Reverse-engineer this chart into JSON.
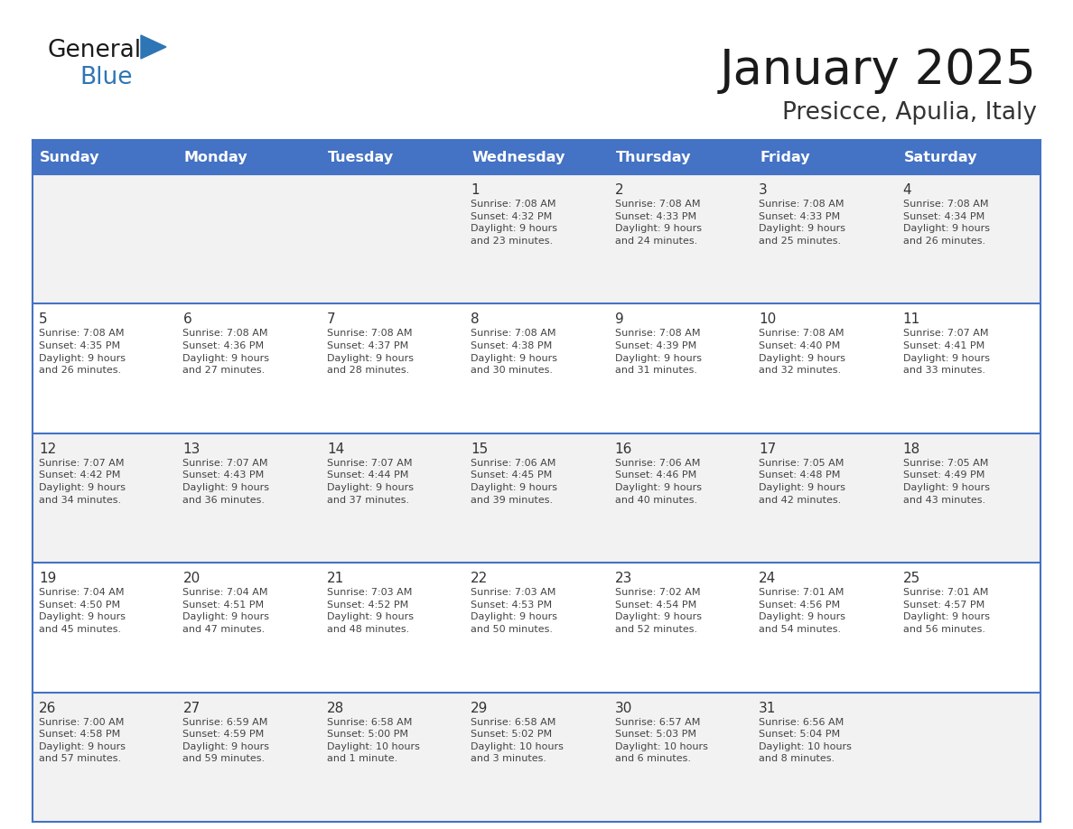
{
  "title": "January 2025",
  "subtitle": "Presicce, Apulia, Italy",
  "days_of_week": [
    "Sunday",
    "Monday",
    "Tuesday",
    "Wednesday",
    "Thursday",
    "Friday",
    "Saturday"
  ],
  "header_bg": "#4472C4",
  "header_text": "#FFFFFF",
  "cell_bg_even": "#F2F2F2",
  "cell_bg_odd": "#FFFFFF",
  "cell_border": "#4472C4",
  "cell_border_light": "#CCCCCC",
  "day_number_color": "#333333",
  "text_color": "#444444",
  "title_color": "#1a1a1a",
  "subtitle_color": "#333333",
  "logo_general_color": "#1a1a1a",
  "logo_blue_color": "#2E75B6",
  "week_rows": [
    [
      {
        "day": null,
        "text": ""
      },
      {
        "day": null,
        "text": ""
      },
      {
        "day": null,
        "text": ""
      },
      {
        "day": 1,
        "text": "Sunrise: 7:08 AM\nSunset: 4:32 PM\nDaylight: 9 hours\nand 23 minutes."
      },
      {
        "day": 2,
        "text": "Sunrise: 7:08 AM\nSunset: 4:33 PM\nDaylight: 9 hours\nand 24 minutes."
      },
      {
        "day": 3,
        "text": "Sunrise: 7:08 AM\nSunset: 4:33 PM\nDaylight: 9 hours\nand 25 minutes."
      },
      {
        "day": 4,
        "text": "Sunrise: 7:08 AM\nSunset: 4:34 PM\nDaylight: 9 hours\nand 26 minutes."
      }
    ],
    [
      {
        "day": 5,
        "text": "Sunrise: 7:08 AM\nSunset: 4:35 PM\nDaylight: 9 hours\nand 26 minutes."
      },
      {
        "day": 6,
        "text": "Sunrise: 7:08 AM\nSunset: 4:36 PM\nDaylight: 9 hours\nand 27 minutes."
      },
      {
        "day": 7,
        "text": "Sunrise: 7:08 AM\nSunset: 4:37 PM\nDaylight: 9 hours\nand 28 minutes."
      },
      {
        "day": 8,
        "text": "Sunrise: 7:08 AM\nSunset: 4:38 PM\nDaylight: 9 hours\nand 30 minutes."
      },
      {
        "day": 9,
        "text": "Sunrise: 7:08 AM\nSunset: 4:39 PM\nDaylight: 9 hours\nand 31 minutes."
      },
      {
        "day": 10,
        "text": "Sunrise: 7:08 AM\nSunset: 4:40 PM\nDaylight: 9 hours\nand 32 minutes."
      },
      {
        "day": 11,
        "text": "Sunrise: 7:07 AM\nSunset: 4:41 PM\nDaylight: 9 hours\nand 33 minutes."
      }
    ],
    [
      {
        "day": 12,
        "text": "Sunrise: 7:07 AM\nSunset: 4:42 PM\nDaylight: 9 hours\nand 34 minutes."
      },
      {
        "day": 13,
        "text": "Sunrise: 7:07 AM\nSunset: 4:43 PM\nDaylight: 9 hours\nand 36 minutes."
      },
      {
        "day": 14,
        "text": "Sunrise: 7:07 AM\nSunset: 4:44 PM\nDaylight: 9 hours\nand 37 minutes."
      },
      {
        "day": 15,
        "text": "Sunrise: 7:06 AM\nSunset: 4:45 PM\nDaylight: 9 hours\nand 39 minutes."
      },
      {
        "day": 16,
        "text": "Sunrise: 7:06 AM\nSunset: 4:46 PM\nDaylight: 9 hours\nand 40 minutes."
      },
      {
        "day": 17,
        "text": "Sunrise: 7:05 AM\nSunset: 4:48 PM\nDaylight: 9 hours\nand 42 minutes."
      },
      {
        "day": 18,
        "text": "Sunrise: 7:05 AM\nSunset: 4:49 PM\nDaylight: 9 hours\nand 43 minutes."
      }
    ],
    [
      {
        "day": 19,
        "text": "Sunrise: 7:04 AM\nSunset: 4:50 PM\nDaylight: 9 hours\nand 45 minutes."
      },
      {
        "day": 20,
        "text": "Sunrise: 7:04 AM\nSunset: 4:51 PM\nDaylight: 9 hours\nand 47 minutes."
      },
      {
        "day": 21,
        "text": "Sunrise: 7:03 AM\nSunset: 4:52 PM\nDaylight: 9 hours\nand 48 minutes."
      },
      {
        "day": 22,
        "text": "Sunrise: 7:03 AM\nSunset: 4:53 PM\nDaylight: 9 hours\nand 50 minutes."
      },
      {
        "day": 23,
        "text": "Sunrise: 7:02 AM\nSunset: 4:54 PM\nDaylight: 9 hours\nand 52 minutes."
      },
      {
        "day": 24,
        "text": "Sunrise: 7:01 AM\nSunset: 4:56 PM\nDaylight: 9 hours\nand 54 minutes."
      },
      {
        "day": 25,
        "text": "Sunrise: 7:01 AM\nSunset: 4:57 PM\nDaylight: 9 hours\nand 56 minutes."
      }
    ],
    [
      {
        "day": 26,
        "text": "Sunrise: 7:00 AM\nSunset: 4:58 PM\nDaylight: 9 hours\nand 57 minutes."
      },
      {
        "day": 27,
        "text": "Sunrise: 6:59 AM\nSunset: 4:59 PM\nDaylight: 9 hours\nand 59 minutes."
      },
      {
        "day": 28,
        "text": "Sunrise: 6:58 AM\nSunset: 5:00 PM\nDaylight: 10 hours\nand 1 minute."
      },
      {
        "day": 29,
        "text": "Sunrise: 6:58 AM\nSunset: 5:02 PM\nDaylight: 10 hours\nand 3 minutes."
      },
      {
        "day": 30,
        "text": "Sunrise: 6:57 AM\nSunset: 5:03 PM\nDaylight: 10 hours\nand 6 minutes."
      },
      {
        "day": 31,
        "text": "Sunrise: 6:56 AM\nSunset: 5:04 PM\nDaylight: 10 hours\nand 8 minutes."
      },
      {
        "day": null,
        "text": ""
      }
    ]
  ]
}
